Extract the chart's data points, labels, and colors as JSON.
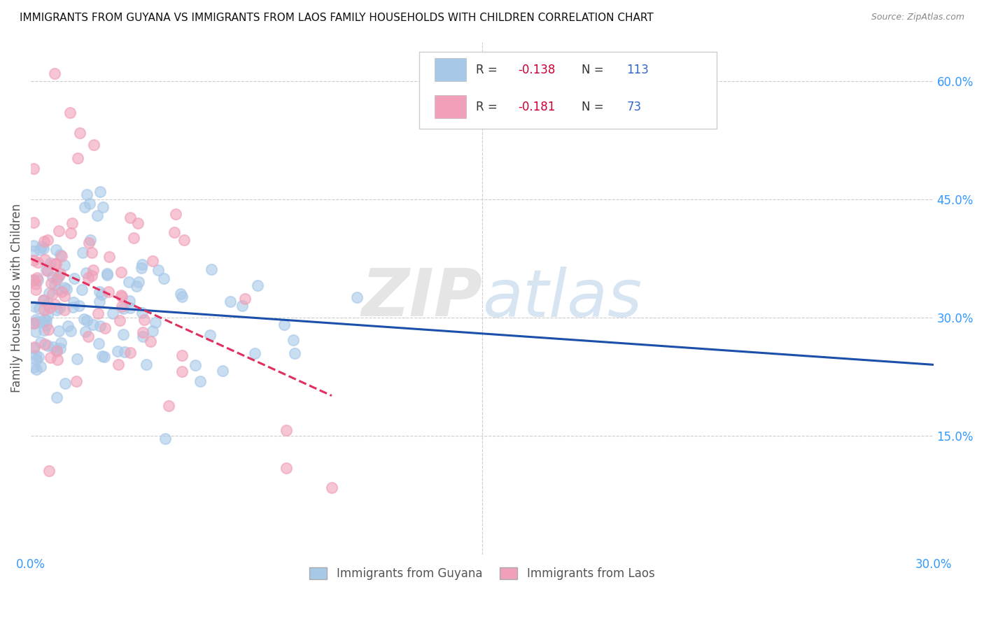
{
  "title": "IMMIGRANTS FROM GUYANA VS IMMIGRANTS FROM LAOS FAMILY HOUSEHOLDS WITH CHILDREN CORRELATION CHART",
  "source": "Source: ZipAtlas.com",
  "ylabel": "Family Households with Children",
  "xlim": [
    0.0,
    0.3
  ],
  "ylim": [
    0.0,
    0.65
  ],
  "x_ticks": [
    0.0,
    0.05,
    0.1,
    0.15,
    0.2,
    0.25,
    0.3
  ],
  "x_tick_labels": [
    "0.0%",
    "",
    "",
    "",
    "",
    "",
    "30.0%"
  ],
  "y_ticks_right": [
    0.15,
    0.3,
    0.45,
    0.6
  ],
  "y_tick_labels_right": [
    "15.0%",
    "30.0%",
    "45.0%",
    "60.0%"
  ],
  "guyana_color": "#a8c8e8",
  "laos_color": "#f0a0b8",
  "guyana_line_color": "#1a4faa",
  "laos_line_color": "#e03060",
  "R_guyana": -0.138,
  "N_guyana": 113,
  "R_laos": -0.181,
  "N_laos": 73,
  "legend_label_guyana": "Immigrants from Guyana",
  "legend_label_laos": "Immigrants from Laos",
  "watermark_zip": "ZIP",
  "watermark_atlas": "atlas",
  "grid_color": "#cccccc",
  "vline_x": 0.15
}
